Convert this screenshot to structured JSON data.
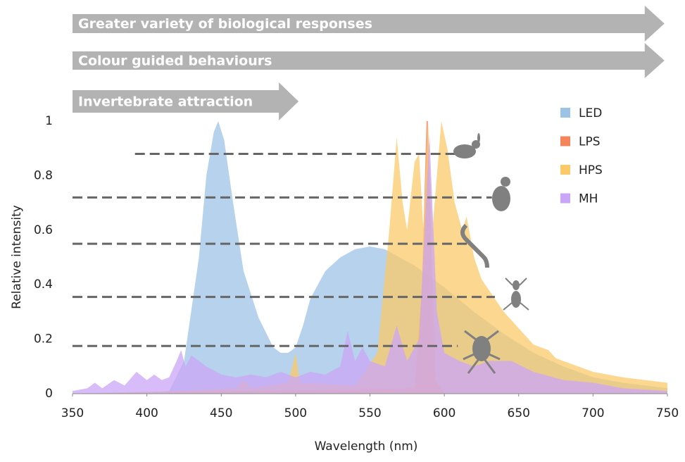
{
  "chart_data": {
    "type": "area",
    "x_label": "Wavelength (nm)",
    "y_label": "Relative intensity",
    "xlim": [
      350,
      750
    ],
    "ylim": [
      0,
      1
    ],
    "xticks": [
      350,
      400,
      450,
      500,
      550,
      600,
      650,
      700,
      750
    ],
    "yticks": [
      0,
      0.2,
      0.4,
      0.6,
      0.8,
      1
    ],
    "grid": false,
    "legend": "top-right",
    "arrows": [
      {
        "label": "Greater variety of biological responses",
        "xlim": [
          350,
          748
        ]
      },
      {
        "label": "Colour guided behaviours",
        "xlim": [
          350,
          748
        ]
      },
      {
        "label": "Invertebrate attraction",
        "xlim": [
          350,
          502
        ]
      }
    ],
    "reference_lines": [
      {
        "y": 0.88,
        "xlim": [
          392,
          620
        ]
      },
      {
        "y": 0.72,
        "xlim": [
          350,
          632
        ]
      },
      {
        "y": 0.55,
        "xlim": [
          350,
          617
        ]
      },
      {
        "y": 0.355,
        "xlim": [
          350,
          634
        ]
      },
      {
        "y": 0.175,
        "xlim": [
          350,
          609
        ]
      }
    ],
    "series": [
      {
        "name": "LED",
        "color": "#9dc3e6",
        "x": [
          350,
          400,
          415,
          425,
          435,
          440,
          445,
          448,
          452,
          458,
          465,
          475,
          485,
          490,
          495,
          500,
          505,
          510,
          520,
          530,
          540,
          550,
          560,
          570,
          580,
          590,
          600,
          620,
          640,
          660,
          680,
          700,
          720,
          750
        ],
        "values": [
          0,
          0,
          0.01,
          0.12,
          0.5,
          0.8,
          0.96,
          1.0,
          0.93,
          0.7,
          0.45,
          0.28,
          0.17,
          0.15,
          0.15,
          0.17,
          0.25,
          0.35,
          0.45,
          0.5,
          0.53,
          0.54,
          0.53,
          0.5,
          0.47,
          0.43,
          0.39,
          0.3,
          0.22,
          0.15,
          0.1,
          0.06,
          0.04,
          0.02
        ]
      },
      {
        "name": "LPS",
        "color": "#f4845a",
        "x": [
          350,
          580,
          585,
          588,
          589,
          591,
          594,
          600,
          750
        ],
        "values": [
          0,
          0.02,
          0.4,
          1.0,
          1.0,
          0.6,
          0.05,
          0,
          0
        ]
      },
      {
        "name": "HPS",
        "color": "#f9c96a",
        "x": [
          350,
          420,
          460,
          465,
          470,
          495,
          500,
          503,
          540,
          555,
          563,
          568,
          572,
          575,
          580,
          583,
          586,
          589,
          592,
          595,
          598,
          602,
          607,
          612,
          615,
          620,
          625,
          630,
          640,
          650,
          660,
          670,
          675,
          690,
          700,
          720,
          750
        ],
        "values": [
          0,
          0.01,
          0.02,
          0.05,
          0.02,
          0.04,
          0.15,
          0.04,
          0.03,
          0.15,
          0.6,
          0.94,
          0.7,
          0.6,
          0.85,
          0.88,
          0.6,
          1.0,
          0.6,
          0.8,
          1.0,
          0.9,
          0.7,
          0.6,
          0.65,
          0.5,
          0.42,
          0.38,
          0.3,
          0.24,
          0.18,
          0.16,
          0.13,
          0.1,
          0.08,
          0.06,
          0.04
        ]
      },
      {
        "name": "MH",
        "color": "#c9a6f7",
        "x": [
          350,
          360,
          365,
          370,
          378,
          385,
          393,
          400,
          405,
          410,
          415,
          420,
          423,
          426,
          430,
          435,
          440,
          450,
          460,
          470,
          480,
          490,
          500,
          510,
          520,
          530,
          535,
          540,
          545,
          550,
          560,
          568,
          575,
          583,
          590,
          595,
          600,
          610,
          620,
          630,
          645,
          660,
          680,
          700,
          720,
          750
        ],
        "values": [
          0.01,
          0.02,
          0.04,
          0.02,
          0.05,
          0.03,
          0.08,
          0.05,
          0.07,
          0.05,
          0.06,
          0.12,
          0.16,
          0.1,
          0.14,
          0.12,
          0.1,
          0.07,
          0.06,
          0.07,
          0.06,
          0.08,
          0.06,
          0.08,
          0.07,
          0.1,
          0.23,
          0.12,
          0.17,
          0.12,
          0.1,
          0.25,
          0.12,
          0.2,
          0.95,
          0.3,
          0.15,
          0.12,
          0.1,
          0.12,
          0.12,
          0.08,
          0.05,
          0.04,
          0.02,
          0.01
        ]
      }
    ]
  }
}
